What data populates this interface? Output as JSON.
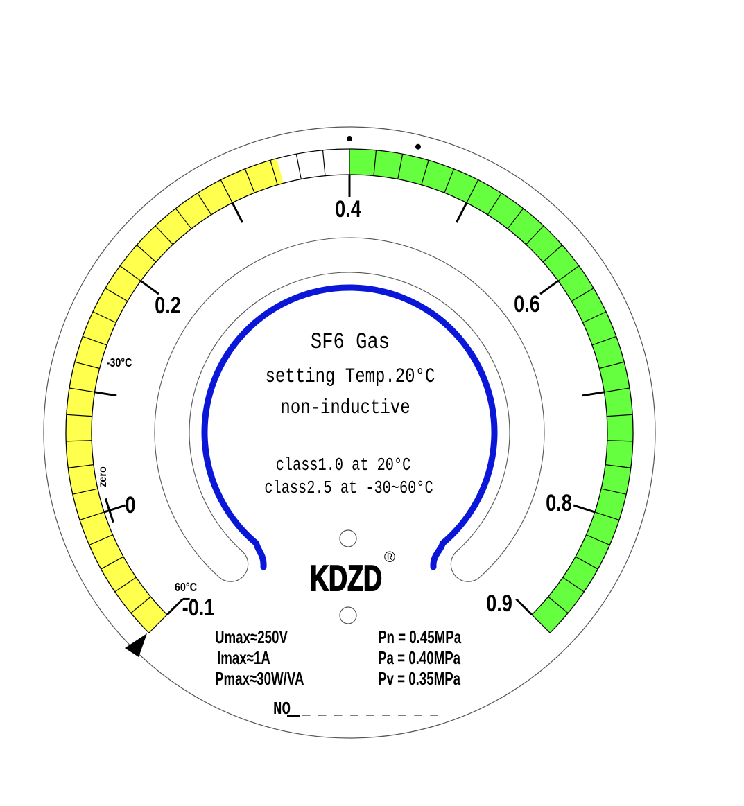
{
  "scale": {
    "min": -0.1,
    "max": 0.9,
    "cell_step": 0.02,
    "major_step": 0.1,
    "sweep_degrees": 270,
    "labels": [
      "-0.1",
      "0",
      "0.2",
      "0.4",
      "0.6",
      "0.8",
      "0.9"
    ],
    "bands": [
      {
        "from": -0.1,
        "to": 0.345,
        "color": "#ffff4d"
      },
      {
        "from": 0.345,
        "to": 0.4,
        "color": "#ffffff"
      },
      {
        "from": 0.4,
        "to": 0.9,
        "color": "#66ff40"
      }
    ],
    "marker_dots": [
      0.4,
      0.45
    ]
  },
  "temperature_marks": {
    "minus30": "-30°C",
    "zero": "zero",
    "plus60": "60°C"
  },
  "center": {
    "line1": "SF6 Gas",
    "line2": "setting Temp.20°C",
    "line3": "non-inductive",
    "class1": "class1.0 at 20°C",
    "class2": "class2.5 at -30~60°C"
  },
  "brand": {
    "name": "KDZD",
    "registered": "®",
    "registered_color": "#e53030"
  },
  "ratings": {
    "umax": "Umax≈250V",
    "imax": "Imax≈1A",
    "pmax": "Pmax≈30W/VA",
    "pn": "Pn = 0.45MPa",
    "pa": "Pa = 0.40MPa",
    "pv": "Pv = 0.35MPa"
  },
  "serial": {
    "label": "NO",
    "blank": "_ _ _ _ _ _ _ _ _"
  },
  "colors": {
    "blue_arc": "#0a16d8",
    "outline": "#555555"
  }
}
